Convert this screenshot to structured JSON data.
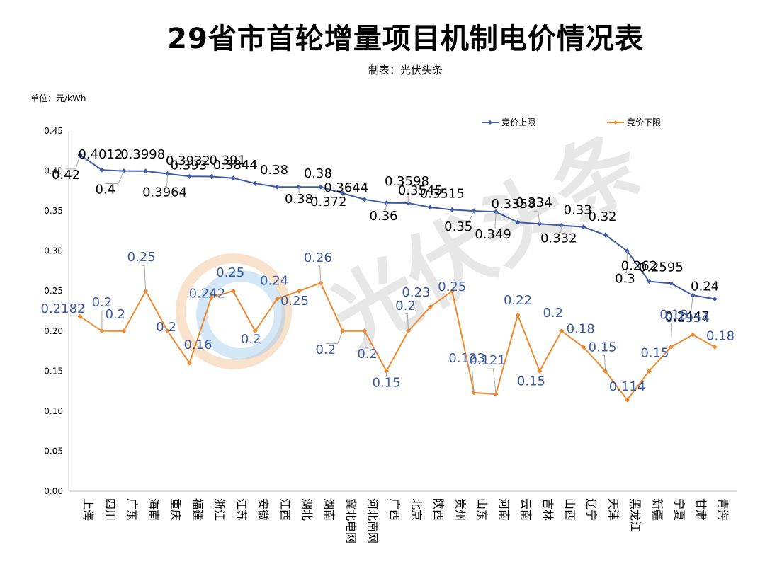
{
  "title": "29省市首轮增量项目机制电价情况表",
  "subtitle": "制表：光伏头条",
  "unit_label": "单位：元/kWh",
  "watermark": "光伏头条",
  "colors": {
    "upper": "#3b5ba5",
    "lower": "#ed8a30",
    "axis": "#bfbfbf"
  },
  "chart_data": {
    "type": "line",
    "ylim": [
      0,
      0.45
    ],
    "yticks": [
      "0.00",
      "0.05",
      "0.10",
      "0.15",
      "0.20",
      "0.25",
      "0.30",
      "0.35",
      "0.40",
      "0.45"
    ],
    "categories": [
      "上海",
      "四川",
      "广东",
      "海南",
      "重庆",
      "福建",
      "浙江",
      "江苏",
      "安徽",
      "江西",
      "湖北",
      "湖南",
      "冀北电网",
      "河北南网",
      "广西",
      "北京",
      "陕西",
      "贵州",
      "山东",
      "河南",
      "云南",
      "吉林",
      "山西",
      "辽宁",
      "天津",
      "黑龙江",
      "新疆",
      "宁夏",
      "甘肃",
      "青海"
    ],
    "legend_position": "top-right",
    "grid": false,
    "series": [
      {
        "name": "竞价上限",
        "values": [
          0.42,
          0.4012,
          0.4,
          0.3998,
          0.3964,
          0.3932,
          0.393,
          0.391,
          0.3844,
          0.38,
          0.38,
          0.38,
          0.372,
          0.3644,
          0.36,
          0.3598,
          0.3545,
          0.3515,
          0.35,
          0.349,
          0.3358,
          0.334,
          0.332,
          0.33,
          0.32,
          0.3,
          0.262,
          0.2595,
          0.2447,
          0.24
        ],
        "labels": [
          "0.42",
          "0.4012",
          "0.4",
          "0.3998",
          "0.3964",
          "0.3932",
          "0.393",
          "0.391",
          "0.3844",
          "0.38",
          "0.38",
          "0.38",
          "0.372",
          "0.3644",
          "0.36",
          "0.3598",
          "0.3545",
          "0.3515",
          "0.35",
          "0.349",
          "0.3358",
          "0.334",
          "0.332",
          "0.33",
          "0.32",
          "0.3",
          "0.262",
          "0.2595",
          "0.2447",
          "0.24"
        ]
      },
      {
        "name": "竞价下限",
        "values": [
          0.2182,
          0.2,
          0.2,
          0.25,
          0.2,
          0.16,
          0.242,
          0.25,
          0.2,
          0.24,
          0.25,
          0.26,
          0.2,
          0.2,
          0.15,
          0.2,
          0.23,
          0.25,
          0.123,
          0.121,
          0.22,
          0.15,
          0.2,
          0.18,
          0.15,
          0.114,
          0.15,
          0.18,
          0.1954,
          0.18
        ],
        "labels": [
          "0.2182",
          "0.2",
          "0.2",
          "0.25",
          "0.2",
          "0.16",
          "0.242",
          "0.25",
          "0.2",
          "0.24",
          "0.25",
          "0.26",
          "0.2",
          "0.2",
          "0.15",
          "0.2",
          "0.23",
          "0.25",
          "0.123",
          "0.121",
          "0.22",
          "0.15",
          "0.2",
          "0.18",
          "0.15",
          "0.114",
          "0.15",
          "0.18",
          "0.1954",
          "0.18"
        ]
      }
    ]
  }
}
